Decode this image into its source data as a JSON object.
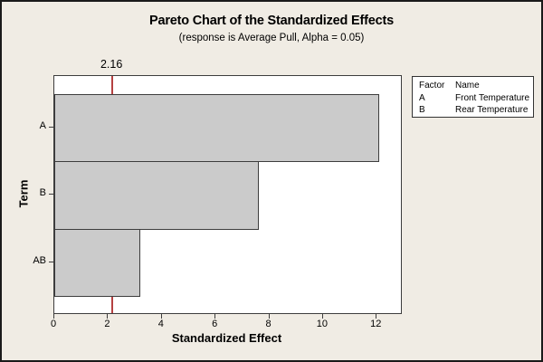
{
  "chart": {
    "title": "Pareto Chart of the Standardized Effects",
    "subtitle": "(response is Average Pull, Alpha = 0.05)",
    "xlabel": "Standardized Effect",
    "ylabel": "Term",
    "reference_line_label": "2.16"
  },
  "chart_data": {
    "type": "bar",
    "orientation": "horizontal",
    "title": "Pareto Chart of the Standardized Effects",
    "subtitle": "(response is Average Pull, Alpha = 0.05)",
    "xlabel": "Standardized Effect",
    "ylabel": "Term",
    "categories": [
      "A",
      "B",
      "AB"
    ],
    "values": [
      12.1,
      7.6,
      3.2
    ],
    "xlim": [
      0,
      12.9
    ],
    "x_ticks": [
      0,
      2,
      4,
      6,
      8,
      10,
      12
    ],
    "reference_line": 2.16,
    "grid": false,
    "legend_position": "top-right",
    "colors": {
      "background": "#F0ECE4",
      "plot_background": "#FFFFFF",
      "bar_fill": "#CBCBCB",
      "bar_border": "#3D3D3D",
      "reference_line": "#B54141"
    }
  },
  "legend": {
    "headers": [
      "Factor",
      "Name"
    ],
    "rows": [
      {
        "factor": "A",
        "name": "Front Temperature"
      },
      {
        "factor": "B",
        "name": "Rear Temperature"
      }
    ]
  }
}
